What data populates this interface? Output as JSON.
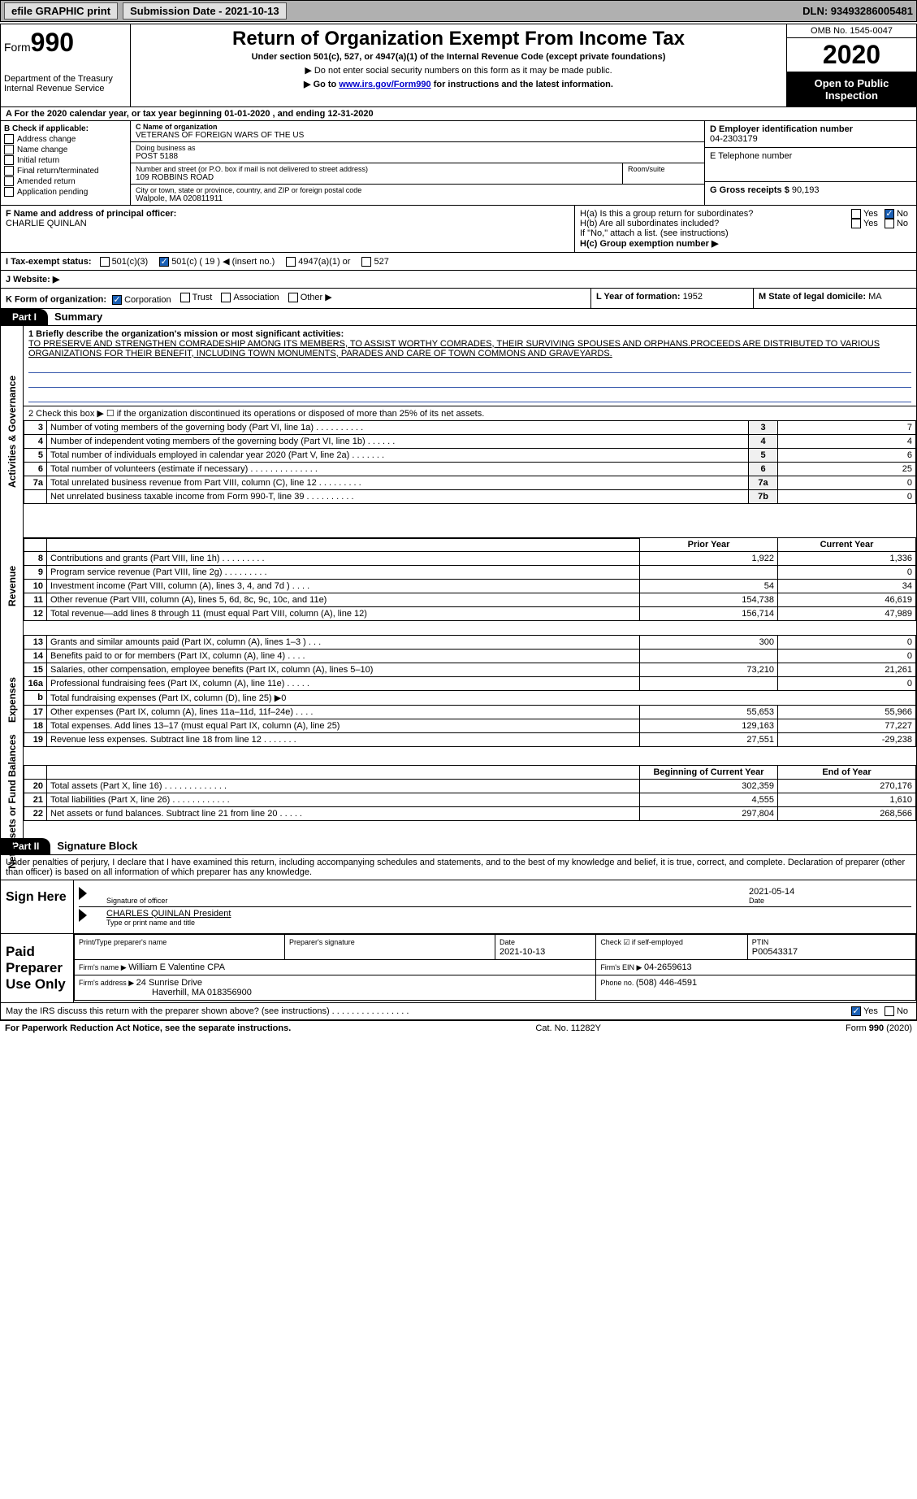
{
  "topbar": {
    "efile": "efile GRAPHIC print",
    "sub_label": "Submission Date - 2021-10-13",
    "dln_label": "DLN: 93493286005481"
  },
  "header": {
    "form_label": "Form",
    "form_num": "990",
    "dept": "Department of the Treasury\nInternal Revenue Service",
    "title": "Return of Organization Exempt From Income Tax",
    "subtitle": "Under section 501(c), 527, or 4947(a)(1) of the Internal Revenue Code (except private foundations)",
    "note1": "▶ Do not enter social security numbers on this form as it may be made public.",
    "note2_prefix": "▶ Go to ",
    "note2_link": "www.irs.gov/Form990",
    "note2_suffix": " for instructions and the latest information.",
    "omb": "OMB No. 1545-0047",
    "year": "2020",
    "open": "Open to Public Inspection"
  },
  "rowA": "A For the 2020 calendar year, or tax year beginning 01-01-2020   , and ending 12-31-2020",
  "colB": {
    "title": "B Check if applicable:",
    "items": [
      "Address change",
      "Name change",
      "Initial return",
      "Final return/terminated",
      "Amended return",
      "Application pending"
    ]
  },
  "colC": {
    "name_lbl": "C Name of organization",
    "name": "VETERANS OF FOREIGN WARS OF THE US",
    "dba_lbl": "Doing business as",
    "dba": "POST 5188",
    "street_lbl": "Number and street (or P.O. box if mail is not delivered to street address)",
    "street": "109 ROBBINS ROAD",
    "room_lbl": "Room/suite",
    "city_lbl": "City or town, state or province, country, and ZIP or foreign postal code",
    "city": "Walpole, MA  020811911"
  },
  "colD": {
    "ein_lbl": "D Employer identification number",
    "ein": "04-2303179",
    "phone_lbl": "E Telephone number",
    "gross_lbl": "G Gross receipts $ ",
    "gross": "90,193"
  },
  "rowF": {
    "f_lbl": "F  Name and address of principal officer:",
    "f_name": "CHARLIE QUINLAN",
    "ha_lbl": "H(a)  Is this a group return for subordinates?",
    "hb_lbl": "H(b)  Are all subordinates included?",
    "h_note": "If \"No,\" attach a list. (see instructions)",
    "hc_lbl": "H(c)  Group exemption number ▶",
    "yes": "Yes",
    "no": "No"
  },
  "rowI": {
    "lbl": "I   Tax-exempt status:",
    "c3": "501(c)(3)",
    "c": "501(c) ( 19 ) ◀ (insert no.)",
    "a1": "4947(a)(1) or",
    "s527": "527"
  },
  "rowJ": {
    "lbl": "J   Website: ▶"
  },
  "rowK": {
    "lbl": "K Form of organization:",
    "opts": [
      "Corporation",
      "Trust",
      "Association",
      "Other ▶"
    ],
    "l_lbl": "L Year of formation: ",
    "l_val": "1952",
    "m_lbl": "M State of legal domicile: ",
    "m_val": "MA"
  },
  "part1": {
    "tab": "Part I",
    "title": "Summary",
    "line1_lbl": "1  Briefly describe the organization's mission or most significant activities:",
    "mission": "TO PRESERVE AND STRENGTHEN COMRADESHIP AMONG ITS MEMBERS, TO ASSIST WORTHY COMRADES, THEIR SURVIVING SPOUSES AND ORPHANS.PROCEEDS ARE DISTRIBUTED TO VARIOUS ORGANIZATIONS FOR THEIR BENEFIT, INCLUDING TOWN MONUMENTS, PARADES AND CARE OF TOWN COMMONS AND GRAVEYARDS.",
    "line2": "2   Check this box ▶ ☐ if the organization discontinued its operations or disposed of more than 25% of its net assets.",
    "gov_rows": [
      {
        "n": "3",
        "desc": "Number of voting members of the governing body (Part VI, line 1a)   .   .   .   .   .   .   .   .   .   .",
        "box": "3",
        "val": "7"
      },
      {
        "n": "4",
        "desc": "Number of independent voting members of the governing body (Part VI, line 1b)   .   .   .   .   .   .",
        "box": "4",
        "val": "4"
      },
      {
        "n": "5",
        "desc": "Total number of individuals employed in calendar year 2020 (Part V, line 2a)   .   .   .   .   .   .   .",
        "box": "5",
        "val": "6"
      },
      {
        "n": "6",
        "desc": "Total number of volunteers (estimate if necessary)   .   .   .   .   .   .   .   .   .   .   .   .   .   .",
        "box": "6",
        "val": "25"
      },
      {
        "n": "7a",
        "desc": "Total unrelated business revenue from Part VIII, column (C), line 12   .   .   .   .   .   .   .   .   .",
        "box": "7a",
        "val": "0"
      },
      {
        "n": "",
        "desc": "Net unrelated business taxable income from Form 990-T, line 39   .   .   .   .   .   .   .   .   .   .",
        "box": "7b",
        "val": "0"
      }
    ],
    "col_prior": "Prior Year",
    "col_current": "Current Year",
    "rev_rows": [
      {
        "n": "8",
        "desc": "Contributions and grants (Part VIII, line 1h)   .   .   .   .   .   .   .   .   .",
        "py": "1,922",
        "cy": "1,336"
      },
      {
        "n": "9",
        "desc": "Program service revenue (Part VIII, line 2g)   .   .   .   .   .   .   .   .   .",
        "py": "",
        "cy": "0"
      },
      {
        "n": "10",
        "desc": "Investment income (Part VIII, column (A), lines 3, 4, and 7d )   .   .   .   .",
        "py": "54",
        "cy": "34"
      },
      {
        "n": "11",
        "desc": "Other revenue (Part VIII, column (A), lines 5, 6d, 8c, 9c, 10c, and 11e)",
        "py": "154,738",
        "cy": "46,619"
      },
      {
        "n": "12",
        "desc": "Total revenue—add lines 8 through 11 (must equal Part VIII, column (A), line 12)",
        "py": "156,714",
        "cy": "47,989"
      }
    ],
    "exp_rows": [
      {
        "n": "13",
        "desc": "Grants and similar amounts paid (Part IX, column (A), lines 1–3 )   .   .   .",
        "py": "300",
        "cy": "0"
      },
      {
        "n": "14",
        "desc": "Benefits paid to or for members (Part IX, column (A), line 4)   .   .   .   .",
        "py": "",
        "cy": "0"
      },
      {
        "n": "15",
        "desc": "Salaries, other compensation, employee benefits (Part IX, column (A), lines 5–10)",
        "py": "73,210",
        "cy": "21,261"
      },
      {
        "n": "16a",
        "desc": "Professional fundraising fees (Part IX, column (A), line 11e)   .   .   .   .   .",
        "py": "",
        "cy": "0"
      },
      {
        "n": "b",
        "desc": "Total fundraising expenses (Part IX, column (D), line 25) ▶0",
        "py": "—",
        "cy": "—"
      },
      {
        "n": "17",
        "desc": "Other expenses (Part IX, column (A), lines 11a–11d, 11f–24e)   .   .   .   .",
        "py": "55,653",
        "cy": "55,966"
      },
      {
        "n": "18",
        "desc": "Total expenses. Add lines 13–17 (must equal Part IX, column (A), line 25)",
        "py": "129,163",
        "cy": "77,227"
      },
      {
        "n": "19",
        "desc": "Revenue less expenses. Subtract line 18 from line 12   .   .   .   .   .   .   .",
        "py": "27,551",
        "cy": "-29,238"
      }
    ],
    "col_begin": "Beginning of Current Year",
    "col_end": "End of Year",
    "net_rows": [
      {
        "n": "20",
        "desc": "Total assets (Part X, line 16)   .   .   .   .   .   .   .   .   .   .   .   .   .",
        "py": "302,359",
        "cy": "270,176"
      },
      {
        "n": "21",
        "desc": "Total liabilities (Part X, line 26)   .   .   .   .   .   .   .   .   .   .   .   .",
        "py": "4,555",
        "cy": "1,610"
      },
      {
        "n": "22",
        "desc": "Net assets or fund balances. Subtract line 21 from line 20   .   .   .   .   .",
        "py": "297,804",
        "cy": "268,566"
      }
    ],
    "side_gov": "Activities & Governance",
    "side_rev": "Revenue",
    "side_exp": "Expenses",
    "side_net": "Net Assets or Fund Balances"
  },
  "part2": {
    "tab": "Part II",
    "title": "Signature Block",
    "decl": "Under penalties of perjury, I declare that I have examined this return, including accompanying schedules and statements, and to the best of my knowledge and belief, it is true, correct, and complete. Declaration of preparer (other than officer) is based on all information of which preparer has any knowledge.",
    "sign_here": "Sign Here",
    "sig_officer_lbl": "Signature of officer",
    "sig_date": "2021-05-14",
    "date_lbl": "Date",
    "officer_name": "CHARLES QUINLAN President",
    "officer_name_lbl": "Type or print name and title",
    "paid": "Paid Preparer Use Only",
    "prep_name_lbl": "Print/Type preparer's name",
    "prep_sig_lbl": "Preparer's signature",
    "prep_date_lbl": "Date",
    "prep_date": "2021-10-13",
    "prep_check_lbl": "Check ☑ if self-employed",
    "ptin_lbl": "PTIN",
    "ptin": "P00543317",
    "firm_name_lbl": "Firm's name    ▶ ",
    "firm_name": "William E Valentine CPA",
    "firm_ein_lbl": "Firm's EIN ▶ ",
    "firm_ein": "04-2659613",
    "firm_addr_lbl": "Firm's address ▶ ",
    "firm_addr1": "24 Sunrise Drive",
    "firm_addr2": "Haverhill, MA  018356900",
    "firm_phone_lbl": "Phone no. ",
    "firm_phone": "(508) 446-4591",
    "discuss": "May the IRS discuss this return with the preparer shown above? (see instructions)   .   .   .   .   .   .   .   .   .   .   .   .   .   .   .   .",
    "yes": "Yes",
    "no": "No"
  },
  "footer": {
    "left": "For Paperwork Reduction Act Notice, see the separate instructions.",
    "mid": "Cat. No. 11282Y",
    "right": "Form 990 (2020)"
  },
  "colors": {
    "link": "#0000cc",
    "topbar_bg": "#b0b0b0",
    "check_blue": "#1a5fb4"
  }
}
